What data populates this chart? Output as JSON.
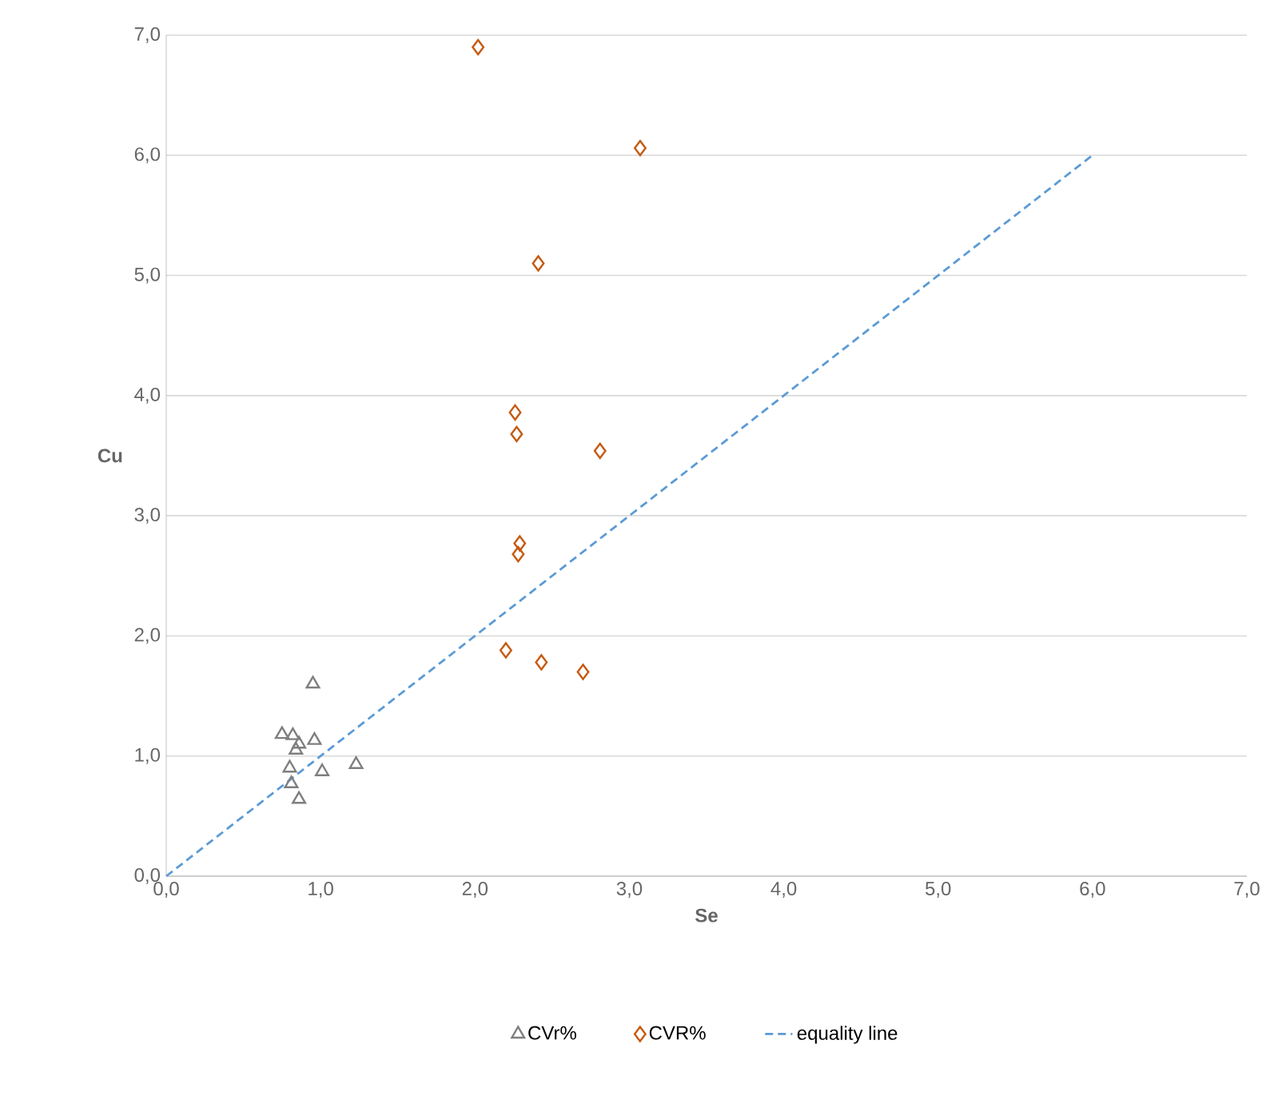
{
  "chart_data": {
    "type": "scatter",
    "xlabel": "Se",
    "ylabel": "Cu",
    "series": [
      {
        "name": "CVr%",
        "marker": "triangle",
        "color": "#7f7f7f",
        "x": [
          0.95,
          0.75,
          0.82,
          0.86,
          0.96,
          0.84,
          1.23,
          1.01,
          0.8,
          0.81,
          0.86
        ],
        "values": [
          1.6,
          1.18,
          1.17,
          1.1,
          1.13,
          1.05,
          0.93,
          0.87,
          0.9,
          0.77,
          0.64
        ]
      },
      {
        "name": "CVR%",
        "marker": "diamond",
        "color": "#c55a11",
        "x": [
          2.02,
          3.07,
          2.41,
          2.26,
          2.27,
          2.81,
          2.29,
          2.28,
          2.2,
          2.43,
          2.7
        ],
        "values": [
          6.9,
          6.06,
          5.1,
          3.86,
          3.68,
          3.54,
          2.77,
          2.68,
          1.88,
          1.78,
          1.7
        ]
      },
      {
        "name": "equality line",
        "type": "line",
        "line_style": "dashed",
        "color": "#5b9bd5",
        "x": [
          0,
          6
        ],
        "values": [
          0,
          6
        ]
      }
    ],
    "xlim": [
      0,
      7
    ],
    "ylim": [
      0,
      7
    ],
    "xticks": [
      {
        "value": 0,
        "label": "0,0"
      },
      {
        "value": 1,
        "label": "1,0"
      },
      {
        "value": 2,
        "label": "2,0"
      },
      {
        "value": 3,
        "label": "3,0"
      },
      {
        "value": 4,
        "label": "4,0"
      },
      {
        "value": 5,
        "label": "5,0"
      },
      {
        "value": 6,
        "label": "6,0"
      },
      {
        "value": 7,
        "label": "7,0"
      }
    ],
    "yticks": [
      {
        "value": 0,
        "label": "0,0"
      },
      {
        "value": 1,
        "label": "1,0"
      },
      {
        "value": 2,
        "label": "2,0"
      },
      {
        "value": 3,
        "label": "3,0"
      },
      {
        "value": 4,
        "label": "4,0"
      },
      {
        "value": 5,
        "label": "5,0"
      },
      {
        "value": 6,
        "label": "6,0"
      },
      {
        "value": 7,
        "label": "7,0"
      }
    ],
    "grid": "y",
    "legend": "bottom"
  }
}
